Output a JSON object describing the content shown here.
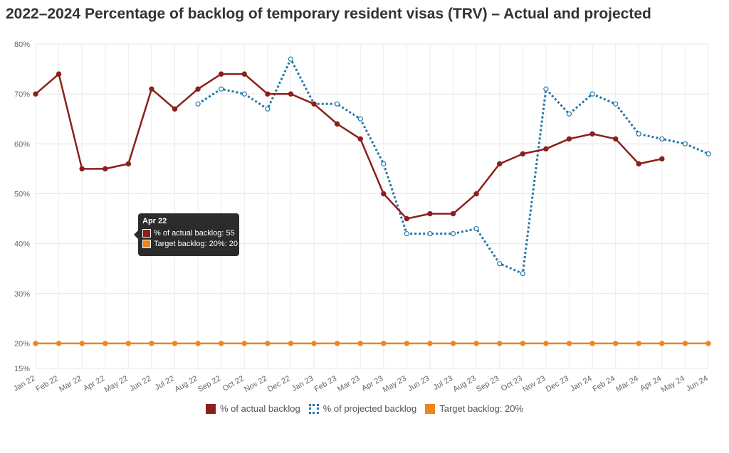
{
  "chart_data": {
    "type": "line",
    "title": "2022–2024 Percentage of backlog of temporary resident visas (TRV) – Actual and projected",
    "categories": [
      "Jan 22",
      "Feb 22",
      "Mar 22",
      "Apr 22",
      "May 22",
      "Jun 22",
      "Jul 22",
      "Aug 22",
      "Sep 22",
      "Oct 22",
      "Nov 22",
      "Dec 22",
      "Jan 23",
      "Feb 23",
      "Mar 23",
      "Apr 23",
      "May 23",
      "Jun 23",
      "Jul 23",
      "Aug 23",
      "Sep 23",
      "Oct 23",
      "Nov 23",
      "Dec 23",
      "Jan 24",
      "Feb 24",
      "Mar 24",
      "Apr 24",
      "May 24",
      "Jun 24"
    ],
    "y_ticks": [
      {
        "value": 15,
        "label": "15%"
      },
      {
        "value": 20,
        "label": "20%"
      },
      {
        "value": 30,
        "label": "30%"
      },
      {
        "value": 40,
        "label": "40%"
      },
      {
        "value": 50,
        "label": "50%"
      },
      {
        "value": 60,
        "label": "60%"
      },
      {
        "value": 70,
        "label": "70%"
      },
      {
        "value": 80,
        "label": "80%"
      }
    ],
    "ylim": [
      15,
      80
    ],
    "xlabel": "",
    "ylabel": "",
    "grid": true,
    "legend_position": "bottom",
    "series": [
      {
        "name": "% of actual backlog",
        "color": "#8b1f1a",
        "style": "solid",
        "values": [
          70,
          74,
          55,
          55,
          56,
          71,
          67,
          71,
          74,
          74,
          70,
          70,
          68,
          64,
          61,
          50,
          45,
          46,
          46,
          50,
          56,
          58,
          59,
          61,
          62,
          61,
          56,
          57,
          null,
          null
        ]
      },
      {
        "name": "% of projected backlog",
        "color": "#2278a8",
        "style": "dotted",
        "values": [
          null,
          null,
          null,
          null,
          null,
          null,
          null,
          68,
          71,
          70,
          67,
          77,
          68,
          68,
          65,
          56,
          42,
          42,
          42,
          43,
          36,
          34,
          71,
          66,
          70,
          68,
          62,
          61,
          60,
          58
        ]
      },
      {
        "name": "Target backlog: 20%",
        "color": "#f0841e",
        "style": "solid",
        "values": [
          20,
          20,
          20,
          20,
          20,
          20,
          20,
          20,
          20,
          20,
          20,
          20,
          20,
          20,
          20,
          20,
          20,
          20,
          20,
          20,
          20,
          20,
          20,
          20,
          20,
          20,
          20,
          20,
          20,
          20
        ]
      }
    ],
    "tooltip": {
      "title": "Apr 22",
      "rows": [
        {
          "text": "% of actual backlog: 55",
          "color": "#8b1f1a"
        },
        {
          "text": "Target backlog: 20%: 20",
          "color": "#f0841e"
        }
      ]
    }
  }
}
